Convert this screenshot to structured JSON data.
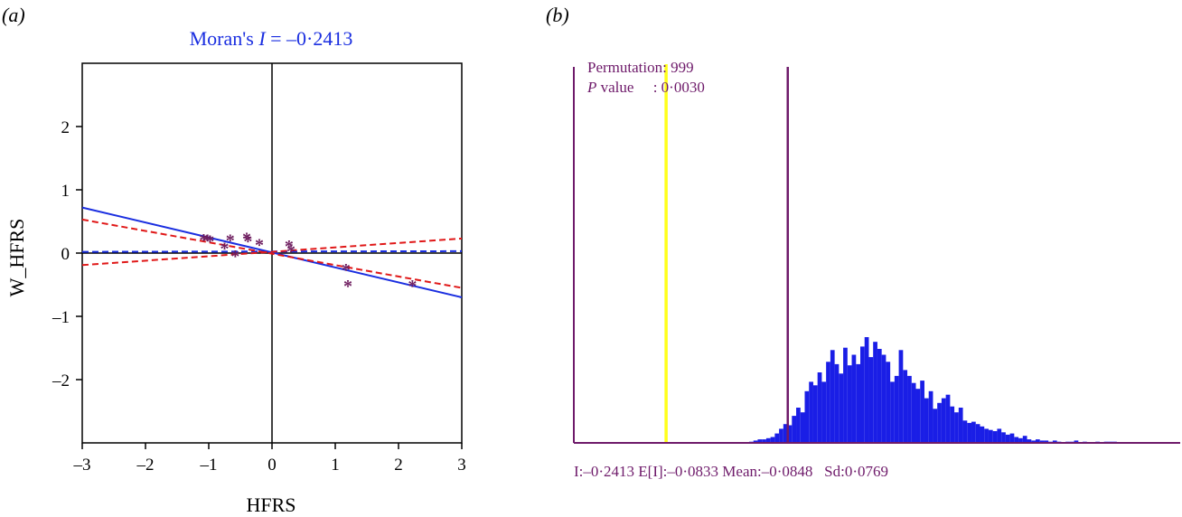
{
  "panel_a": {
    "label": "(a)",
    "chart_data": {
      "type": "scatter",
      "title_prefix": "Moran's ",
      "title_italic": "I",
      "title_suffix": " = –0·2413",
      "xlabel": "HFRS",
      "ylabel": "W_HFRS",
      "xlim": [
        -3,
        3
      ],
      "ylim": [
        -3,
        3
      ],
      "xticks": [
        -3,
        -2,
        -1,
        0,
        1,
        2,
        3
      ],
      "xtick_labels": [
        "–3",
        "–2",
        "–1",
        "0",
        "1",
        "2",
        "3"
      ],
      "yticks": [
        -2,
        -1,
        0,
        1,
        2
      ],
      "ytick_labels": [
        "–2",
        "–1",
        "0",
        "1",
        "2"
      ],
      "points": [
        {
          "x": -1.08,
          "y": 0.23
        },
        {
          "x": -1.02,
          "y": 0.22
        },
        {
          "x": -0.98,
          "y": 0.21
        },
        {
          "x": -0.75,
          "y": 0.09
        },
        {
          "x": -0.66,
          "y": 0.22
        },
        {
          "x": -0.58,
          "y": -0.03
        },
        {
          "x": -0.4,
          "y": 0.25
        },
        {
          "x": -0.38,
          "y": 0.21
        },
        {
          "x": -0.2,
          "y": 0.15
        },
        {
          "x": 0.27,
          "y": 0.13
        },
        {
          "x": 0.3,
          "y": 0.05
        },
        {
          "x": 1.17,
          "y": -0.24
        },
        {
          "x": 1.2,
          "y": -0.5
        },
        {
          "x": 2.22,
          "y": -0.5
        }
      ],
      "lines": [
        {
          "name": "",
          "color": "#1a2ee0",
          "dash": "solid",
          "x": [
            -3,
            3
          ],
          "y": [
            0.72,
            -0.7
          ]
        },
        {
          "name": "",
          "color": "#1a2ee0",
          "dash": "dashed",
          "x": [
            -3,
            3
          ],
          "y": [
            0.02,
            0.03
          ]
        },
        {
          "name": "",
          "color": "#e01818",
          "dash": "dashed",
          "x": [
            -3,
            3
          ],
          "y": [
            0.53,
            -0.55
          ]
        },
        {
          "name": "",
          "color": "#e01818",
          "dash": "dashed",
          "x": [
            -3,
            3
          ],
          "y": [
            -0.19,
            0.23
          ]
        }
      ],
      "colors": {
        "title": "#1a2ee0",
        "points": "#6e1d5f",
        "axes": "#000000"
      }
    }
  },
  "panel_b": {
    "label": "(b)",
    "chart_data": {
      "type": "bar",
      "title": "",
      "annotation_line1": "Permutation: 999",
      "annotation_line2_italic": "P",
      "annotation_line2_rest": " value     : 0·0030",
      "footer": "I:–0·2413 E[I]:–0·0833 Mean:–0·0848   Sd:0·0769",
      "bin_start": -0.36,
      "bin_width": 0.0055,
      "counts": [
        0,
        0,
        0,
        0,
        0,
        0,
        0,
        0,
        0,
        0,
        0,
        0,
        0,
        0,
        0,
        0,
        0,
        0,
        0,
        0,
        0,
        0,
        0,
        0,
        0,
        0,
        0,
        0,
        0,
        0,
        0,
        0,
        0,
        0,
        0,
        0,
        0,
        0,
        0,
        0,
        0,
        1,
        2,
        3,
        3,
        4,
        5,
        8,
        12,
        16,
        15,
        23,
        30,
        26,
        44,
        52,
        49,
        60,
        52,
        69,
        79,
        67,
        59,
        81,
        66,
        75,
        67,
        82,
        90,
        73,
        86,
        80,
        75,
        69,
        52,
        57,
        79,
        62,
        57,
        51,
        46,
        53,
        38,
        44,
        29,
        34,
        38,
        41,
        31,
        26,
        30,
        19,
        17,
        18,
        16,
        14,
        12,
        11,
        10,
        12,
        9,
        7,
        8,
        5,
        4,
        6,
        3,
        2,
        3,
        2,
        2,
        1,
        2,
        1,
        0,
        1,
        1,
        2,
        0,
        1,
        0,
        0,
        1,
        0,
        1,
        1,
        1,
        0,
        0,
        0,
        0,
        0,
        0,
        0,
        0,
        0,
        0,
        0,
        0,
        0,
        0,
        0,
        0
      ],
      "observed_I": -0.2413,
      "mean": -0.0848,
      "xlim": [
        -0.36,
        0.42
      ],
      "colors": {
        "bars": "#1a1ee6",
        "observed_line": "#ffff1a",
        "mean_line": "#6e1a6a",
        "axes": "#6e1a6a",
        "text": "#6e1a6a"
      }
    }
  }
}
